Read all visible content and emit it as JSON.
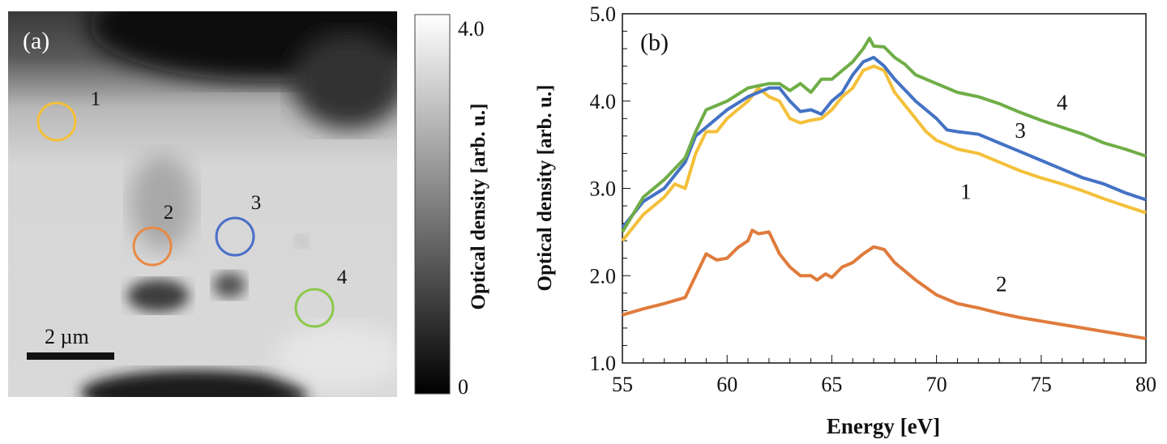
{
  "panel_a": {
    "label": "(a)",
    "scale_bar_label": "2 µm",
    "regions": [
      {
        "label": "1",
        "color": "#f4c03a"
      },
      {
        "label": "2",
        "color": "#e88a45"
      },
      {
        "label": "3",
        "color": "#4a70c8"
      },
      {
        "label": "4",
        "color": "#8cc84b"
      }
    ],
    "colorbar": {
      "max_label": "4.0",
      "min_label": "0",
      "label": "Optical density [arb. u.]",
      "range": [
        0,
        4.0
      ]
    }
  },
  "chart_data": {
    "type": "line",
    "panel_label": "(b)",
    "xlabel": "Energy [eV]",
    "ylabel": "Optical density [arb. u.]",
    "xlim": [
      55,
      80
    ],
    "ylim": [
      1.0,
      5.0
    ],
    "xticks": [
      "55",
      "60",
      "65",
      "70",
      "75",
      "80"
    ],
    "yticks": [
      "1.0",
      "2.0",
      "3.0",
      "4.0",
      "5.0"
    ],
    "grid": false,
    "series": [
      {
        "name": "1",
        "color": "#f4c03a",
        "label_at": [
          71.4,
          2.88
        ],
        "x": [
          55,
          56,
          57,
          57.5,
          58,
          58.5,
          59,
          59.5,
          60,
          60.5,
          61,
          61.5,
          62,
          62.5,
          63,
          63.5,
          64,
          64.5,
          65,
          65.5,
          66,
          66.5,
          67,
          67.5,
          68,
          68.5,
          69,
          69.5,
          70,
          71,
          72,
          73,
          74,
          75,
          76,
          77,
          78,
          79,
          80
        ],
        "y": [
          2.4,
          2.7,
          2.9,
          3.05,
          3.0,
          3.4,
          3.65,
          3.65,
          3.8,
          3.9,
          4.0,
          4.15,
          4.05,
          4.0,
          3.8,
          3.75,
          3.78,
          3.8,
          3.9,
          4.05,
          4.15,
          4.35,
          4.4,
          4.35,
          4.1,
          3.95,
          3.8,
          3.65,
          3.55,
          3.45,
          3.4,
          3.3,
          3.2,
          3.12,
          3.05,
          2.97,
          2.88,
          2.8,
          2.72
        ]
      },
      {
        "name": "2",
        "color": "#e07b3c",
        "label_at": [
          73.1,
          1.82
        ],
        "x": [
          55,
          56,
          57,
          58,
          58.5,
          59,
          59.5,
          60,
          60.5,
          61,
          61.2,
          61.5,
          62,
          62.5,
          63,
          63.5,
          64,
          64.3,
          64.7,
          65,
          65.5,
          66,
          66.5,
          67,
          67.5,
          68,
          69,
          70,
          71,
          72,
          73,
          74,
          75,
          76,
          77,
          78,
          79,
          80
        ],
        "y": [
          1.55,
          1.62,
          1.68,
          1.75,
          2.0,
          2.25,
          2.18,
          2.2,
          2.32,
          2.4,
          2.52,
          2.48,
          2.5,
          2.25,
          2.1,
          2.0,
          2.0,
          1.95,
          2.02,
          1.98,
          2.1,
          2.15,
          2.25,
          2.33,
          2.3,
          2.15,
          1.95,
          1.78,
          1.68,
          1.63,
          1.57,
          1.52,
          1.48,
          1.44,
          1.4,
          1.36,
          1.32,
          1.28
        ]
      },
      {
        "name": "3",
        "color": "#4472c4",
        "label_at": [
          74.0,
          3.58
        ],
        "x": [
          55,
          56,
          57,
          58,
          58.5,
          59,
          60,
          61,
          62,
          62.5,
          63,
          63.5,
          64,
          64.5,
          65,
          65.5,
          66,
          66.5,
          67,
          67.5,
          68,
          69,
          70,
          70.5,
          71,
          72,
          73,
          74,
          75,
          76,
          77,
          78,
          79,
          80
        ],
        "y": [
          2.55,
          2.85,
          3.0,
          3.3,
          3.6,
          3.7,
          3.9,
          4.05,
          4.15,
          4.15,
          4.0,
          3.88,
          3.9,
          3.85,
          4.0,
          4.1,
          4.3,
          4.45,
          4.5,
          4.4,
          4.25,
          4.0,
          3.8,
          3.67,
          3.65,
          3.62,
          3.52,
          3.42,
          3.32,
          3.22,
          3.12,
          3.05,
          2.95,
          2.87
        ]
      },
      {
        "name": "4",
        "color": "#70ad47",
        "label_at": [
          76.0,
          3.9
        ],
        "x": [
          55,
          56,
          57,
          58,
          58.5,
          59,
          60,
          61,
          62,
          62.5,
          63,
          63.5,
          64,
          64.5,
          65,
          65.5,
          66,
          66.5,
          66.8,
          67,
          67.5,
          68,
          68.5,
          69,
          70,
          71,
          72,
          73,
          74,
          75,
          76,
          77,
          78,
          79,
          80
        ],
        "y": [
          2.5,
          2.9,
          3.1,
          3.35,
          3.65,
          3.9,
          4.0,
          4.15,
          4.2,
          4.2,
          4.12,
          4.2,
          4.1,
          4.25,
          4.25,
          4.35,
          4.45,
          4.6,
          4.72,
          4.63,
          4.62,
          4.5,
          4.42,
          4.3,
          4.2,
          4.1,
          4.05,
          3.97,
          3.87,
          3.78,
          3.7,
          3.62,
          3.52,
          3.45,
          3.37
        ]
      }
    ]
  }
}
